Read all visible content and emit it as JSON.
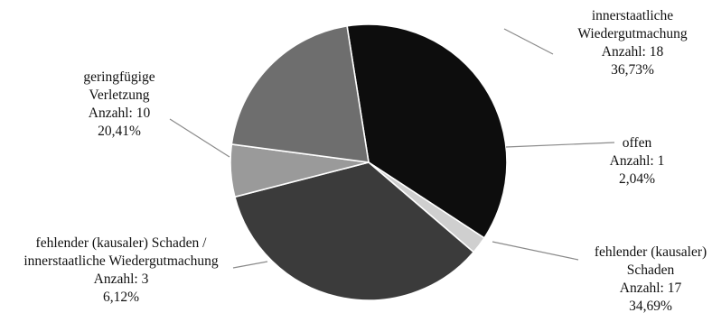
{
  "chart_data": {
    "type": "pie",
    "title": "",
    "start_category": "innerstaatliche Wiedergutmachung",
    "direction": "clockwise",
    "slices": [
      {
        "label_lines": [
          "innerstaatliche",
          "Wiedergutmachung"
        ],
        "count_text": "Anzahl: 18",
        "percent_text": "36,73%",
        "value": 18,
        "percent": 36.73,
        "color": "#0d0d0d"
      },
      {
        "label_lines": [
          "offen"
        ],
        "count_text": "Anzahl: 1",
        "percent_text": "2,04%",
        "value": 1,
        "percent": 2.04,
        "color": "#cfcfcf"
      },
      {
        "label_lines": [
          "fehlender (kausaler)",
          "Schaden"
        ],
        "count_text": "Anzahl: 17",
        "percent_text": "34,69%",
        "value": 17,
        "percent": 34.69,
        "color": "#3b3b3b"
      },
      {
        "label_lines": [
          "fehlender (kausaler) Schaden /",
          "innerstaatliche Wiedergutmachung"
        ],
        "count_text": "Anzahl: 3",
        "percent_text": "6,12%",
        "value": 3,
        "percent": 6.12,
        "color": "#9a9a9a"
      },
      {
        "label_lines": [
          "geringfügige",
          "Verletzung"
        ],
        "count_text": "Anzahl: 10",
        "percent_text": "20,41%",
        "value": 10,
        "percent": 20.41,
        "color": "#6e6e6e"
      }
    ]
  }
}
